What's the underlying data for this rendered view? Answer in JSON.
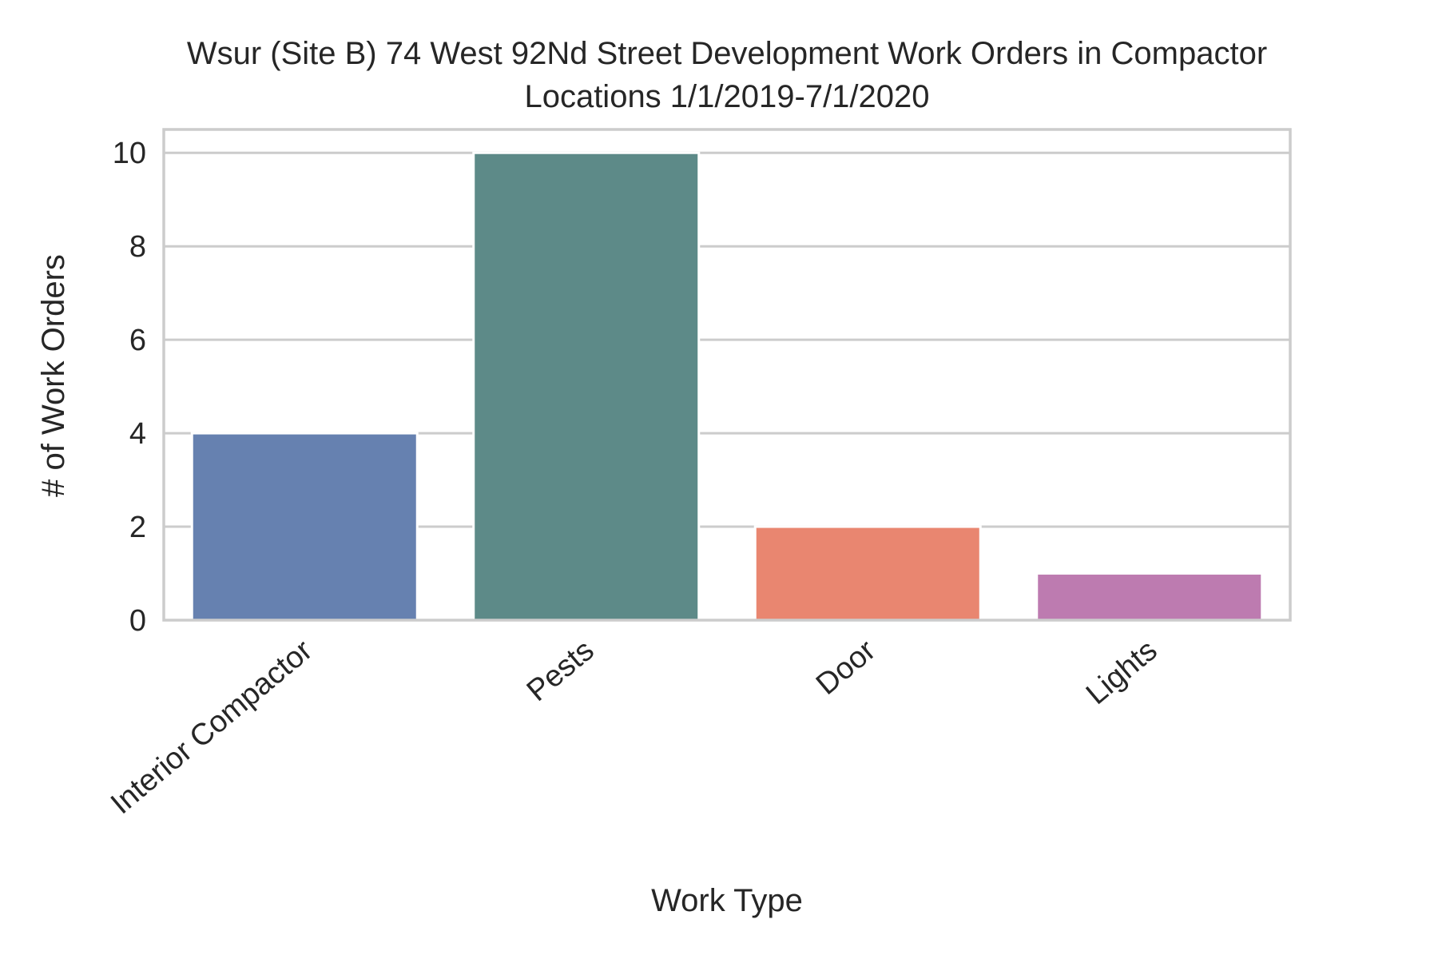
{
  "chart_data": {
    "type": "bar",
    "title_lines": [
      "Wsur (Site B) 74 West 92Nd Street Development Work Orders in Compactor",
      "Locations 1/1/2019-7/1/2020"
    ],
    "xlabel": "Work Type",
    "ylabel": "# of Work Orders",
    "categories": [
      "Interior Compactor",
      "Pests",
      "Door",
      "Lights"
    ],
    "values": [
      4,
      10,
      2,
      1
    ],
    "colors": [
      "#6681b0",
      "#5d8a88",
      "#e98670",
      "#bd7bb0"
    ],
    "ylim": [
      0,
      10.5
    ],
    "yticks": [
      0,
      2,
      4,
      6,
      8,
      10
    ],
    "grid": true,
    "legend": false
  }
}
